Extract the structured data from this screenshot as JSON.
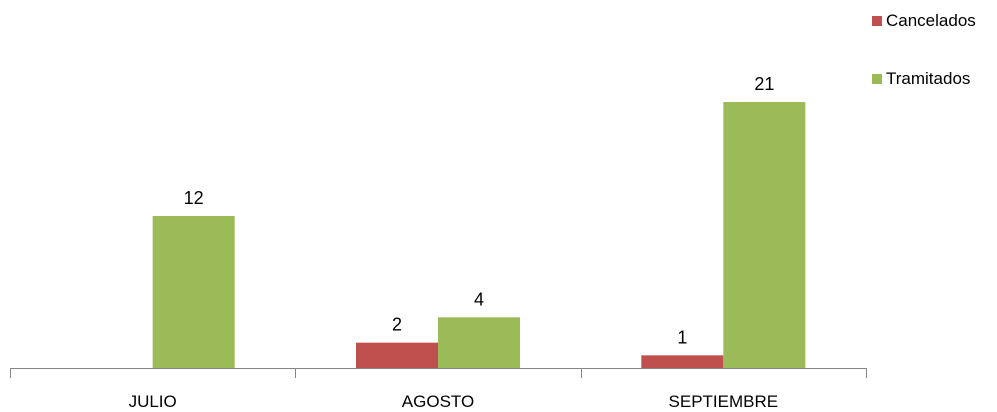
{
  "chart_data": {
    "type": "bar",
    "categories": [
      "JULIO",
      "AGOSTO",
      "SEPTIEMBRE"
    ],
    "series": [
      {
        "name": "Cancelados",
        "color": "#c0504d",
        "values": [
          null,
          2,
          1
        ]
      },
      {
        "name": "Tramitados",
        "color": "#9bbb59",
        "values": [
          12,
          4,
          21
        ]
      }
    ],
    "data_labels": {
      "Cancelados": [
        "",
        "2",
        "1"
      ],
      "Tramitados": [
        "12",
        "4",
        "21"
      ]
    },
    "title": "",
    "xlabel": "",
    "ylabel": "",
    "ylim": [
      0,
      21
    ],
    "grid": false,
    "legend_position": "top-right"
  }
}
